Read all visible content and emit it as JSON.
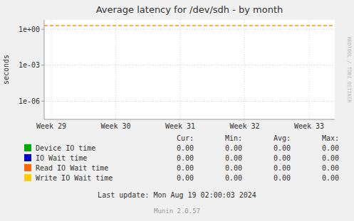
{
  "chart_data": {
    "type": "line",
    "title": "Average latency for /dev/sdh - by month",
    "y_label": "seconds",
    "categories": [
      "Week 29",
      "Week 30",
      "Week 31",
      "Week 32",
      "Week 33"
    ],
    "log": "y",
    "ylim": [
      3e-08,
      6.0
    ],
    "yticks": [
      {
        "value": 1e-06,
        "label": "1e-06"
      },
      {
        "value": 0.001,
        "label": "1e-03"
      },
      {
        "value": 1.0,
        "label": "1e+00"
      }
    ],
    "grid": true,
    "legend": "bottom",
    "reference_lines": [
      {
        "value": 2.0,
        "color": "#ff9900",
        "line_style": "dashed"
      }
    ],
    "table_columns": [
      "Cur:",
      "Min:",
      "Avg:",
      "Max:"
    ],
    "series": [
      {
        "name": "Device IO time",
        "color": "#00aa00",
        "stats": [
          0.0,
          0.0,
          0.0,
          0.0
        ],
        "stat_labels": [
          "0.00",
          "0.00",
          "0.00",
          "0.00"
        ]
      },
      {
        "name": "IO Wait time",
        "color": "#0000cc",
        "stats": [
          0.0,
          0.0,
          0.0,
          0.0
        ],
        "stat_labels": [
          "0.00",
          "0.00",
          "0.00",
          "0.00"
        ]
      },
      {
        "name": "Read IO Wait time",
        "color": "#ff6600",
        "stats": [
          0.0,
          0.0,
          0.0,
          0.0
        ],
        "stat_labels": [
          "0.00",
          "0.00",
          "0.00",
          "0.00"
        ]
      },
      {
        "name": "Write IO Wait time",
        "color": "#ffcc00",
        "stats": [
          0.0,
          0.0,
          0.0,
          0.0
        ],
        "stat_labels": [
          "0.00",
          "0.00",
          "0.00",
          "0.00"
        ]
      }
    ],
    "annotations": [
      "Last update: Mon Aug 19 02:00:03 2024",
      "Munin 2.0.57",
      "RRDTOOL / TOBI OETIKER"
    ]
  }
}
